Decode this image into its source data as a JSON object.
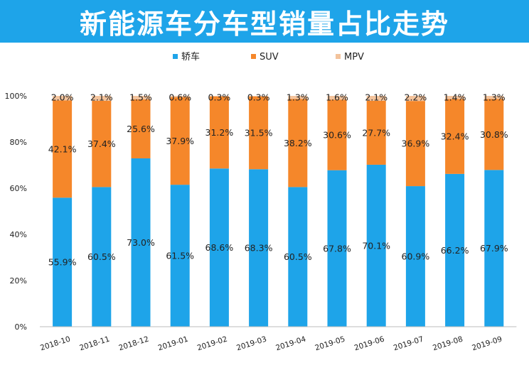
{
  "chart_data": {
    "type": "bar",
    "stacked": true,
    "title": "新能源车分车型销量占比走势",
    "categories": [
      "2018-10",
      "2018-11",
      "2018-12",
      "2019-01",
      "2019-02",
      "2019-03",
      "2019-04",
      "2019-05",
      "2019-06",
      "2019-07",
      "2019-08",
      "2019-09"
    ],
    "series": [
      {
        "name": "轿车",
        "color": "#1ea4e9",
        "values": [
          55.9,
          60.5,
          73.0,
          61.5,
          68.6,
          68.3,
          60.5,
          67.8,
          70.1,
          60.9,
          66.2,
          67.9
        ],
        "labels": [
          "55.9%",
          "60.5%",
          "73.0%",
          "61.5%",
          "68.6%",
          "68.3%",
          "60.5%",
          "67.8%",
          "70.1%",
          "60.9%",
          "66.2%",
          "67.9%"
        ]
      },
      {
        "name": "SUV",
        "color": "#f5872a",
        "values": [
          42.1,
          37.4,
          25.6,
          37.9,
          31.2,
          31.5,
          38.2,
          30.6,
          27.7,
          36.9,
          32.4,
          30.8
        ],
        "labels": [
          "42.1%",
          "37.4%",
          "25.6%",
          "37.9%",
          "31.2%",
          "31.5%",
          "38.2%",
          "30.6%",
          "27.7%",
          "36.9%",
          "32.4%",
          "30.8%"
        ]
      },
      {
        "name": "MPV",
        "color": "#f3c39c",
        "values": [
          2.0,
          2.1,
          1.5,
          0.6,
          0.3,
          0.3,
          1.3,
          1.6,
          2.1,
          2.2,
          1.4,
          1.3
        ],
        "labels": [
          "2.0%",
          "2.1%",
          "1.5%",
          "0.6%",
          "0.3%",
          "0.3%",
          "1.3%",
          "1.6%",
          "2.1%",
          "2.2%",
          "1.4%",
          "1.3%"
        ]
      }
    ],
    "yticks": [
      "0%",
      "20%",
      "40%",
      "60%",
      "80%",
      "100%"
    ],
    "ylim": [
      0,
      100
    ],
    "legend_position": "top-center",
    "grid": false
  }
}
